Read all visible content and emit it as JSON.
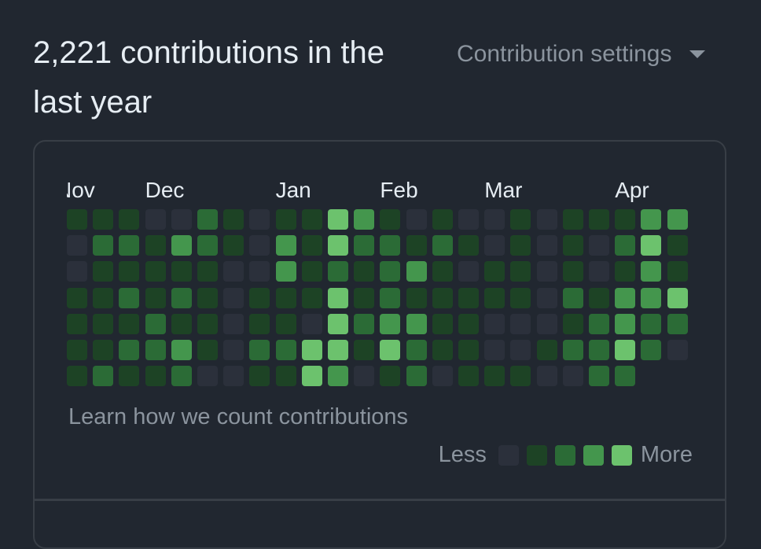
{
  "header": {
    "title": "2,221 contributions in the last year",
    "settings_label": "Contribution settings"
  },
  "graph": {
    "months": [
      {
        "label": "Nov",
        "col": 0,
        "clipped": true
      },
      {
        "label": "Dec",
        "col": 3
      },
      {
        "label": "Jan",
        "col": 8
      },
      {
        "label": "Feb",
        "col": 12
      },
      {
        "label": "Mar",
        "col": 16
      },
      {
        "label": "Apr",
        "col": 21
      }
    ],
    "levels": [
      [
        1,
        1,
        1,
        0,
        0,
        2,
        1,
        0,
        1,
        1,
        4,
        3,
        1,
        0,
        1,
        0,
        0,
        1,
        0,
        1,
        1,
        1,
        3,
        3
      ],
      [
        0,
        2,
        2,
        1,
        3,
        2,
        1,
        0,
        3,
        1,
        4,
        2,
        2,
        1,
        2,
        1,
        0,
        1,
        0,
        1,
        0,
        2,
        4,
        1
      ],
      [
        0,
        1,
        1,
        1,
        1,
        1,
        0,
        0,
        3,
        1,
        2,
        1,
        2,
        3,
        1,
        0,
        1,
        1,
        0,
        1,
        0,
        1,
        3,
        1
      ],
      [
        1,
        1,
        2,
        1,
        2,
        1,
        0,
        1,
        1,
        1,
        4,
        1,
        2,
        1,
        1,
        1,
        1,
        1,
        0,
        2,
        1,
        3,
        3,
        4
      ],
      [
        1,
        1,
        1,
        2,
        1,
        1,
        0,
        1,
        1,
        0,
        4,
        2,
        3,
        3,
        1,
        1,
        0,
        0,
        0,
        1,
        2,
        3,
        2,
        2
      ],
      [
        1,
        1,
        2,
        2,
        3,
        1,
        0,
        2,
        2,
        4,
        4,
        1,
        4,
        2,
        1,
        1,
        0,
        0,
        1,
        2,
        2,
        4,
        2,
        0
      ],
      [
        1,
        2,
        1,
        1,
        2,
        0,
        0,
        1,
        1,
        4,
        3,
        0,
        1,
        2,
        0,
        1,
        1,
        1,
        0,
        0,
        2,
        2,
        -1,
        -1
      ]
    ],
    "colors": [
      "#2b303b",
      "#1d4325",
      "#2b6b36",
      "#44964d",
      "#6cc26d"
    ]
  },
  "footer": {
    "learn_link": "Learn how we count contributions",
    "legend_less": "Less",
    "legend_more": "More"
  }
}
